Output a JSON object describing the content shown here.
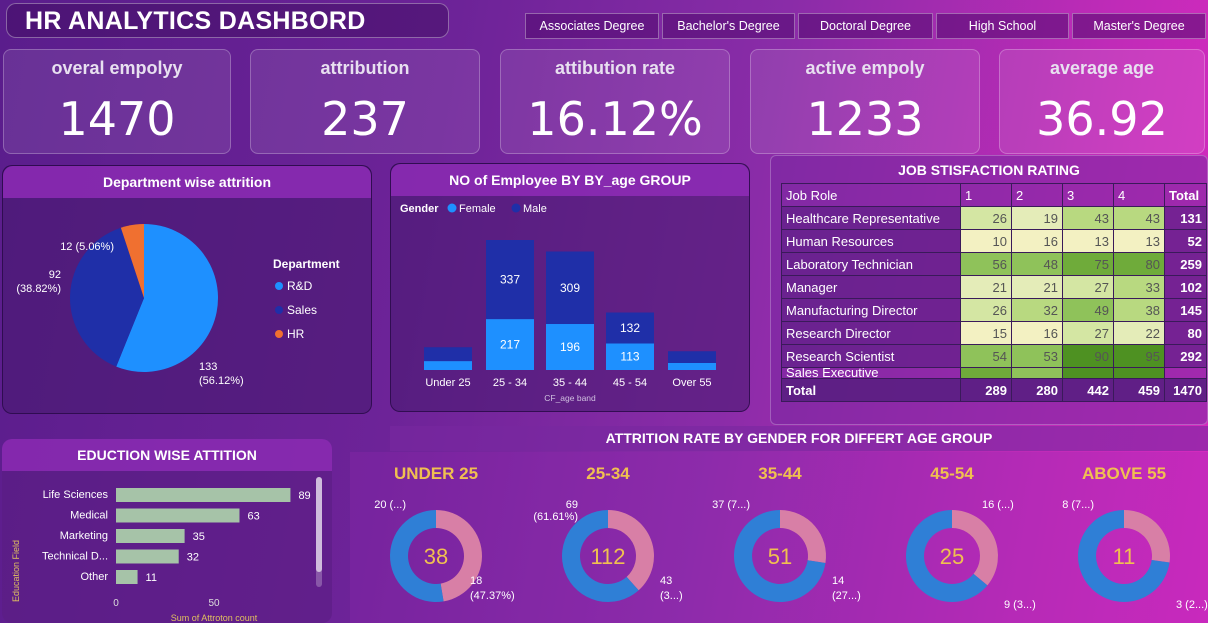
{
  "header": {
    "title": "HR ANALYTICS DASHBORD"
  },
  "filters": [
    "Associates Degree",
    "Bachelor's Degree",
    "Doctoral Degree",
    "High School",
    "Master's Degree"
  ],
  "kpis": [
    {
      "label": "overal empolyy",
      "value": "1470"
    },
    {
      "label": "attribution",
      "value": "237"
    },
    {
      "label": "attibution rate",
      "value": "16.12%"
    },
    {
      "label": "active empoly",
      "value": "1233"
    },
    {
      "label": "average age",
      "value": "36.92"
    }
  ],
  "dept": {
    "title": "Department wise attrition",
    "legend_title": "Department",
    "slices": [
      {
        "name": "R&D",
        "value": 133,
        "label": "133",
        "pct": "(56.12%)",
        "color": "#1e90ff"
      },
      {
        "name": "Sales",
        "value": 92,
        "label": "92",
        "pct": "(38.82%)",
        "color": "#1f2fa8"
      },
      {
        "name": "HR",
        "value": 12,
        "label": "12 (5.06%)",
        "pct": "",
        "color": "#f07030"
      }
    ]
  },
  "age_chart": {
    "title": "NO of Employee BY BY_age GROUP",
    "legend_title": "Gender",
    "series_names": [
      "Female",
      "Male"
    ],
    "colors": {
      "female": "#1e90ff",
      "male": "#1f2fa8"
    },
    "xlabel": "CF_age band"
  },
  "job_table": {
    "title": "JOB STISFACTION RATING",
    "columns": [
      "Job Role",
      "1",
      "2",
      "3",
      "4",
      "Total"
    ],
    "rows": [
      {
        "role": "Healthcare Representative",
        "v": [
          "26",
          "19",
          "43",
          "43"
        ],
        "total": "131"
      },
      {
        "role": "Human Resources",
        "v": [
          "10",
          "16",
          "13",
          "13"
        ],
        "total": "52"
      },
      {
        "role": "Laboratory Technician",
        "v": [
          "56",
          "48",
          "75",
          "80"
        ],
        "total": "259"
      },
      {
        "role": "Manager",
        "v": [
          "21",
          "21",
          "27",
          "33"
        ],
        "total": "102"
      },
      {
        "role": "Manufacturing Director",
        "v": [
          "26",
          "32",
          "49",
          "38"
        ],
        "total": "145"
      },
      {
        "role": "Research Director",
        "v": [
          "15",
          "16",
          "27",
          "22"
        ],
        "total": "80"
      },
      {
        "role": "Research Scientist",
        "v": [
          "54",
          "53",
          "90",
          "95"
        ],
        "total": "292"
      }
    ],
    "partial_row": "Sales Executive",
    "footer": {
      "label": "Total",
      "v": [
        "289",
        "280",
        "442",
        "459"
      ],
      "total": "1470"
    }
  },
  "edu": {
    "title": "EDUCTION WISE ATTITION",
    "ylabel": "Education Field",
    "xlabel": "Sum of Attroton count",
    "ticks": [
      "0",
      "50"
    ]
  },
  "gender_age": {
    "title": "ATTRITION RATE BY GENDER FOR DIFFERT AGE GROUP",
    "groups": [
      {
        "name": "UNDER 25",
        "total": "38",
        "a_label": "20 (...)",
        "b_label": "18",
        "b_label2": "(47.37%)",
        "a_val": 20,
        "b_val": 18
      },
      {
        "name": "25-34",
        "total": "112",
        "a_label": "69",
        "a_label2": "(61.61%)",
        "b_label": "43",
        "b_label2": "(3...)",
        "a_val": 69,
        "b_val": 43
      },
      {
        "name": "35-44",
        "total": "51",
        "a_label": "37 (7...)",
        "b_label": "14",
        "b_label2": "(27...)",
        "a_val": 37,
        "b_val": 14
      },
      {
        "name": "45-54",
        "total": "25",
        "a_label": "16 (...)",
        "b_label": "9 (3...)",
        "a_val": 16,
        "b_val": 9
      },
      {
        "name": "ABOVE 55",
        "total": "11",
        "a_label": "8 (7...)",
        "b_label": "3 (2...)",
        "a_val": 8,
        "b_val": 3
      }
    ],
    "colors": {
      "a": "#2f7fd6",
      "b": "#d87fa6"
    }
  },
  "chart_data": [
    {
      "type": "pie",
      "title": "Department wise attrition",
      "categories": [
        "R&D",
        "Sales",
        "HR"
      ],
      "values": [
        133,
        92,
        12
      ],
      "legend": "right"
    },
    {
      "type": "bar",
      "title": "NO of Employee BY BY_age GROUP",
      "categories": [
        "Under 25",
        "25 - 34",
        "35 - 44",
        "45 - 54",
        "Over 55"
      ],
      "series": [
        {
          "name": "Female",
          "values": [
            38,
            217,
            196,
            113,
            30
          ]
        },
        {
          "name": "Male",
          "values": [
            59,
            337,
            309,
            132,
            50
          ]
        }
      ],
      "xlabel": "CF_age band",
      "data_labels": [
        "",
        "",
        "217",
        "337",
        "196",
        "309",
        "113",
        "132",
        "",
        ""
      ],
      "legend": "top-left"
    },
    {
      "type": "bar",
      "title": "EDUCTION WISE ATTITION",
      "categories": [
        "Life Sciences",
        "Medical",
        "Marketing",
        "Technical D...",
        "Other"
      ],
      "values": [
        89,
        63,
        35,
        32,
        11
      ],
      "xlabel": "Sum of Attroton count",
      "ylabel": "Education Field",
      "xlim": [
        0,
        100
      ]
    }
  ]
}
